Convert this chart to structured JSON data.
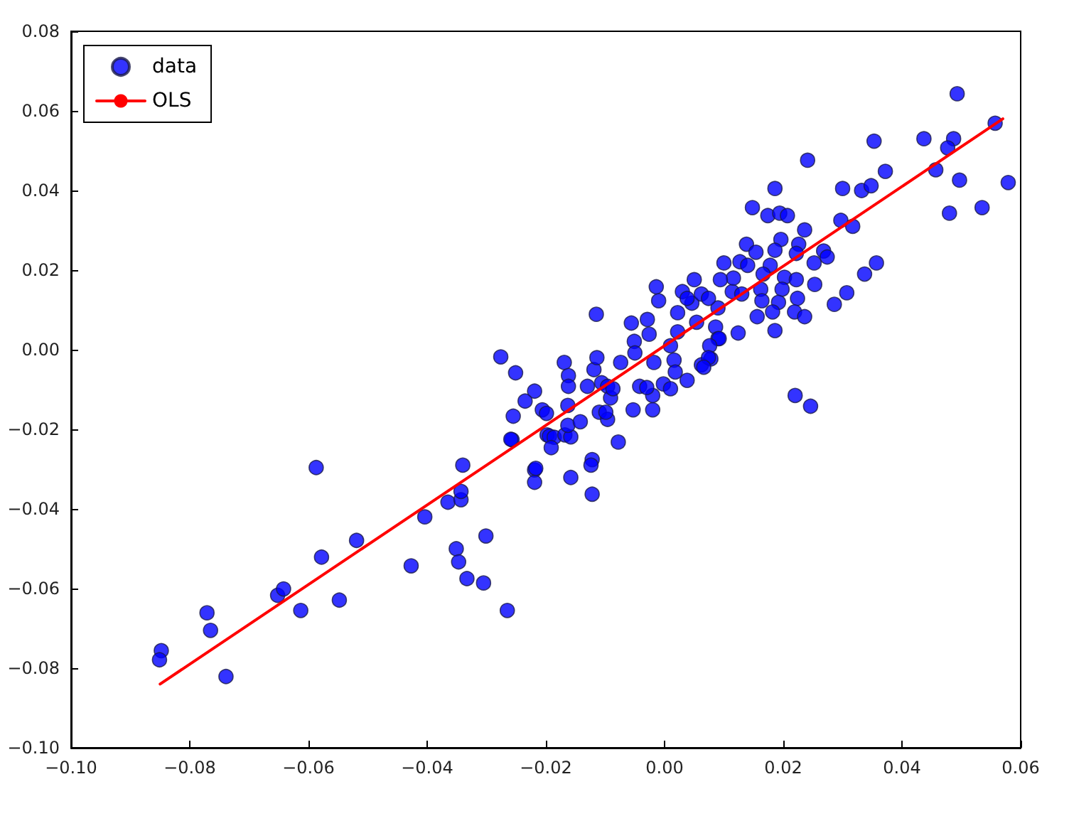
{
  "chart_data": {
    "type": "scatter",
    "legend": "top left",
    "marker": "circle",
    "grid": false,
    "xlim": [
      -0.1,
      0.06
    ],
    "ylim": [
      -0.1,
      0.08
    ],
    "xticks": [
      {
        "value": -0.1,
        "label": "−0.10"
      },
      {
        "value": -0.08,
        "label": "−0.08"
      },
      {
        "value": -0.06,
        "label": "−0.06"
      },
      {
        "value": -0.04,
        "label": "−0.04"
      },
      {
        "value": -0.02,
        "label": "−0.02"
      },
      {
        "value": 0,
        "label": "0.00"
      },
      {
        "value": 0.02,
        "label": "0.02"
      },
      {
        "value": 0.04,
        "label": "0.04"
      },
      {
        "value": 0.06,
        "label": "0.06"
      }
    ],
    "yticks": [
      {
        "value": -0.1,
        "label": "−0.10"
      },
      {
        "value": -0.08,
        "label": "−0.08"
      },
      {
        "value": -0.06,
        "label": "−0.06"
      },
      {
        "value": -0.04,
        "label": "−0.04"
      },
      {
        "value": -0.02,
        "label": "−0.02"
      },
      {
        "value": 0,
        "label": "0.00"
      },
      {
        "value": 0.02,
        "label": "0.02"
      },
      {
        "value": 0.04,
        "label": "0.04"
      },
      {
        "value": 0.06,
        "label": "0.06"
      },
      {
        "value": 0.08,
        "label": "0.08"
      }
    ],
    "series": [
      {
        "name": "data",
        "color": "#0000ff",
        "x": [
          -0.0848,
          -0.0851,
          -0.0771,
          -0.0765,
          -0.0739,
          -0.0587,
          -0.0652,
          -0.0642,
          -0.0613,
          -0.0578,
          -0.0548,
          -0.0519,
          -0.0427,
          -0.0404,
          -0.0365,
          -0.0343,
          -0.0343,
          -0.034,
          -0.0351,
          -0.0347,
          -0.0333,
          -0.0301,
          -0.0305,
          -0.0265,
          -0.0257,
          -0.0219,
          -0.0219,
          -0.0198,
          -0.0115,
          -0.0276,
          -0.0251,
          -0.0169,
          -0.0162,
          -0.0162,
          -0.0219,
          -0.0235,
          -0.0255,
          -0.0259,
          -0.0206,
          -0.0199,
          -0.0163,
          -0.0194,
          -0.0186,
          -0.0168,
          -0.0158,
          -0.0191,
          -0.0163,
          -0.0142,
          -0.013,
          -0.0119,
          -0.0114,
          -0.0106,
          -0.0096,
          -0.011,
          -0.0096,
          -0.0099,
          -0.0078,
          -0.0122,
          -0.0124,
          -0.0217,
          -0.0158,
          -0.0122,
          -0.0091,
          -0.0087,
          -0.0074,
          -0.0056,
          -0.0029,
          -0.0051,
          -0.005,
          -0.0053,
          -0.002,
          -0.002,
          -0.0042,
          -0.003,
          -0.0002,
          0.001,
          0.0038,
          -0.0018,
          0.0016,
          0.0018,
          0.0062,
          0.0078,
          -0.0026,
          -0.001,
          -0.0014,
          0.003,
          0.0022,
          0.0046,
          0.0062,
          0.009,
          0.0086,
          0.0114,
          0.009,
          0.0054,
          0.0022,
          0.001,
          0.0493,
          0.0557,
          0.0437,
          0.0487,
          0.0477,
          0.0353,
          0.0457,
          0.0497,
          0.0579,
          0.048,
          0.0535,
          0.0241,
          0.0372,
          0.03,
          0.0332,
          0.0348,
          0.0186,
          0.0148,
          0.0174,
          0.0194,
          0.0207,
          0.0236,
          0.0297,
          0.0317,
          0.0138,
          0.0154,
          0.0196,
          0.0226,
          0.0186,
          0.0222,
          0.0268,
          0.01,
          0.0127,
          0.014,
          0.0178,
          0.0252,
          0.0274,
          0.0357,
          0.0337,
          0.0253,
          0.0116,
          0.0166,
          0.0202,
          0.0222,
          0.0162,
          0.0198,
          0.013,
          0.0164,
          0.0192,
          0.0224,
          0.0286,
          0.0307,
          0.0182,
          0.0219,
          0.0236,
          0.0156,
          0.0186,
          0.0124,
          0.0092,
          0.0076,
          0.022,
          0.0246,
          0.0074,
          0.0066,
          0.0094,
          0.005,
          0.0074,
          0.0038
        ],
        "values": [
          -0.0756,
          -0.0779,
          -0.0661,
          -0.0705,
          -0.0821,
          -0.0296,
          -0.0617,
          -0.0601,
          -0.0655,
          -0.0521,
          -0.0629,
          -0.0479,
          -0.0543,
          -0.042,
          -0.0383,
          -0.0377,
          -0.0356,
          -0.029,
          -0.05,
          -0.0533,
          -0.0575,
          -0.0468,
          -0.0586,
          -0.0655,
          -0.0226,
          -0.0302,
          -0.0333,
          -0.0214,
          0.0089,
          -0.0018,
          -0.0058,
          -0.0032,
          -0.0065,
          -0.0092,
          -0.0104,
          -0.0129,
          -0.0167,
          -0.0225,
          -0.0151,
          -0.016,
          -0.014,
          -0.0217,
          -0.022,
          -0.0214,
          -0.0219,
          -0.0246,
          -0.019,
          -0.0181,
          -0.0092,
          -0.005,
          -0.002,
          -0.0083,
          -0.0092,
          -0.0157,
          -0.0175,
          -0.0157,
          -0.0232,
          -0.0276,
          -0.029,
          -0.0298,
          -0.0321,
          -0.0363,
          -0.0121,
          -0.0098,
          -0.0032,
          0.0067,
          0.0076,
          0.0021,
          -0.0008,
          -0.0151,
          -0.0151,
          -0.0115,
          -0.0092,
          -0.0095,
          -0.0086,
          -0.0098,
          -0.0077,
          -0.0032,
          -0.0026,
          -0.0056,
          -0.0038,
          -0.0023,
          0.0039,
          0.0123,
          0.0158,
          0.0146,
          0.0093,
          0.0117,
          0.014,
          0.0105,
          0.0057,
          0.0146,
          0.0028,
          0.0069,
          0.0045,
          0.001,
          0.0643,
          0.0569,
          0.053,
          0.053,
          0.0507,
          0.0524,
          0.0452,
          0.0426,
          0.042,
          0.0343,
          0.0357,
          0.0476,
          0.0448,
          0.0405,
          0.04,
          0.0412,
          0.0405,
          0.0357,
          0.0337,
          0.0343,
          0.0337,
          0.0301,
          0.0325,
          0.031,
          0.0265,
          0.0245,
          0.0277,
          0.0265,
          0.025,
          0.0242,
          0.0248,
          0.0218,
          0.0221,
          0.0212,
          0.0212,
          0.0218,
          0.0233,
          0.0218,
          0.019,
          0.0164,
          0.018,
          0.019,
          0.0182,
          0.0176,
          0.0152,
          0.0152,
          0.014,
          0.0123,
          0.0119,
          0.0129,
          0.0114,
          0.0143,
          0.0095,
          0.0095,
          0.0083,
          0.0083,
          0.0048,
          0.0042,
          0.0028,
          0.001,
          -0.0115,
          -0.0142,
          -0.002,
          -0.0044,
          0.0176,
          0.0176,
          0.0129,
          0.0129
        ]
      },
      {
        "name": "OLS",
        "type": "line",
        "color": "#ff0000",
        "marker": "none",
        "line_style": "solid",
        "x": [
          -0.085,
          0.057
        ],
        "values": [
          -0.084,
          0.058
        ]
      }
    ]
  }
}
